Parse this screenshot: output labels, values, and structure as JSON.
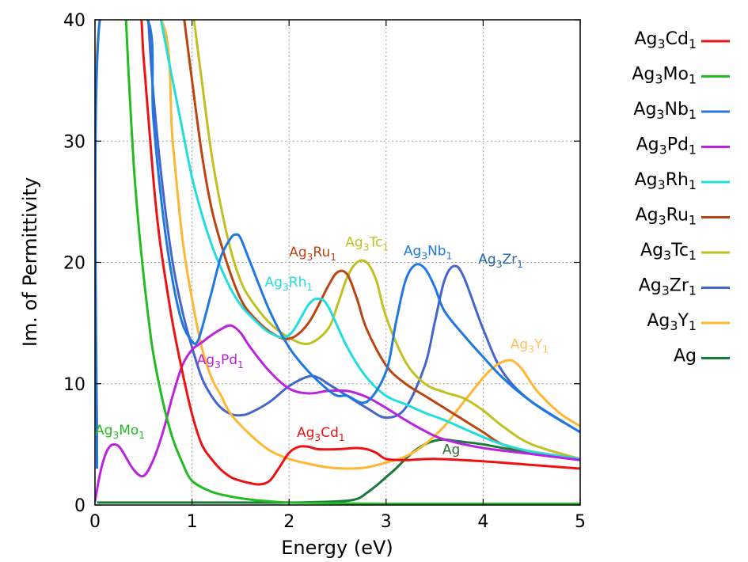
{
  "chart_data": {
    "type": "line",
    "xlabel": "Energy (eV)",
    "ylabel": "Im. of Permittivity",
    "xlim": [
      0,
      5
    ],
    "ylim": [
      0,
      40
    ],
    "xticks": [
      "0",
      "1",
      "2",
      "3",
      "4",
      "5"
    ],
    "yticks": [
      "0",
      "10",
      "20",
      "30",
      "40"
    ],
    "grid": true,
    "legend_position": "right",
    "series": [
      {
        "name": "Ag",
        "sub": "",
        "name2": "",
        "sub2": "",
        "label": "Ag",
        "color": "#1a7a3a",
        "x": [
          0.02,
          0.5,
          1.0,
          1.5,
          2.0,
          2.5,
          2.7,
          2.8,
          2.9,
          3.0,
          3.1,
          3.2,
          3.3,
          3.4,
          3.5,
          3.6,
          3.7,
          3.8,
          4.0,
          4.2,
          4.5,
          5.0
        ],
        "y": [
          0.2,
          0.2,
          0.2,
          0.2,
          0.2,
          0.3,
          0.5,
          1.0,
          1.6,
          2.3,
          3.0,
          3.8,
          4.5,
          5.0,
          5.3,
          5.4,
          5.3,
          5.2,
          5.0,
          4.7,
          4.3,
          3.7
        ]
      },
      {
        "name": "Ag",
        "sub": "3",
        "name2": "Zr",
        "sub2": "1",
        "label": "Ag3Zr1",
        "color": "#4466cc",
        "x": [
          0.55,
          0.6,
          0.7,
          0.8,
          0.9,
          1.0,
          1.1,
          1.2,
          1.3,
          1.4,
          1.5,
          1.6,
          1.8,
          2.0,
          2.2,
          2.3,
          2.4,
          2.6,
          2.8,
          3.0,
          3.2,
          3.4,
          3.5,
          3.6,
          3.7,
          3.8,
          4.0,
          4.2,
          4.5,
          5.0
        ],
        "y": [
          40,
          34,
          26,
          20,
          16,
          13,
          10.5,
          9,
          8,
          7.5,
          7.4,
          7.6,
          8.5,
          9.8,
          10.6,
          10.5,
          10,
          9,
          8,
          7.2,
          8,
          11.5,
          15,
          18.5,
          19.7,
          18.8,
          14.5,
          11,
          8.5,
          6
        ]
      },
      {
        "name": "Ag",
        "sub": "3",
        "name2": "Y",
        "sub2": "1",
        "label": "Ag3Y1",
        "color": "#ffb733",
        "x": [
          0.02,
          0.05,
          0.68,
          0.8,
          0.9,
          1.0,
          1.1,
          1.2,
          1.3,
          1.4,
          1.6,
          1.8,
          2.0,
          2.2,
          2.4,
          2.6,
          2.8,
          3.0,
          3.2,
          3.4,
          3.6,
          3.8,
          4.0,
          4.1,
          4.2,
          4.3,
          4.4,
          4.5,
          4.6,
          4.8,
          5.0
        ],
        "y": [
          5,
          40,
          40,
          30,
          22,
          17,
          13,
          10.5,
          9,
          7.5,
          5.8,
          4.5,
          3.8,
          3.4,
          3.1,
          3.0,
          3.1,
          3.5,
          4,
          5,
          6.5,
          8.5,
          10.5,
          11.3,
          11.8,
          11.9,
          11.2,
          10,
          9,
          7.5,
          6.5
        ]
      },
      {
        "name": "Ag",
        "sub": "3",
        "name2": "Tc",
        "sub2": "1",
        "label": "Ag3Tc1",
        "color": "#c0c020",
        "x": [
          1.02,
          1.1,
          1.2,
          1.3,
          1.4,
          1.5,
          1.6,
          1.8,
          2.0,
          2.2,
          2.4,
          2.5,
          2.6,
          2.7,
          2.8,
          2.9,
          3.0,
          3.2,
          3.4,
          3.6,
          3.8,
          4.0,
          4.2,
          4.5,
          5.0
        ],
        "y": [
          40,
          35,
          29,
          24.5,
          21,
          18.5,
          17,
          15,
          13.8,
          13.3,
          14.5,
          16.5,
          18.8,
          20,
          20,
          18.5,
          15.5,
          11.8,
          10,
          9.3,
          8.8,
          7.8,
          6.5,
          5,
          3.8
        ]
      },
      {
        "name": "Ag",
        "sub": "3",
        "name2": "Ru",
        "sub2": "1",
        "label": "Ag3Ru1",
        "color": "#bb4411",
        "x": [
          0.92,
          1.0,
          1.1,
          1.2,
          1.3,
          1.4,
          1.5,
          1.6,
          1.8,
          2.0,
          2.2,
          2.4,
          2.5,
          2.6,
          2.7,
          2.8,
          3.0,
          3.2,
          3.4,
          3.6,
          3.8,
          4.0,
          4.2,
          4.5,
          5.0
        ],
        "y": [
          40,
          35,
          29,
          24.5,
          21.5,
          19,
          17,
          15.8,
          14.3,
          13.7,
          15,
          18,
          19.2,
          19,
          17,
          14.5,
          11.5,
          10,
          9,
          8,
          7,
          6,
          5,
          4.4,
          3.8
        ]
      },
      {
        "name": "Ag",
        "sub": "3",
        "name2": "Rh",
        "sub2": "1",
        "label": "Ag3Rh1",
        "color": "#22dddd",
        "x": [
          0.68,
          0.8,
          0.9,
          1.0,
          1.1,
          1.2,
          1.3,
          1.4,
          1.5,
          1.6,
          1.8,
          2.0,
          2.2,
          2.3,
          2.4,
          2.6,
          2.8,
          3.0,
          3.2,
          3.4,
          3.6,
          3.8,
          4.0,
          4.2,
          4.5,
          5.0
        ],
        "y": [
          40,
          35,
          31,
          27,
          24,
          21.5,
          19.5,
          17.8,
          16.5,
          15.6,
          14.2,
          14,
          16.5,
          17,
          16.4,
          13,
          10.5,
          9,
          8.3,
          7.6,
          7,
          6.3,
          5.6,
          5,
          4.4,
          3.8
        ]
      },
      {
        "name": "Ag",
        "sub": "3",
        "name2": "Pd",
        "sub2": "1",
        "label": "Ag3Pd1",
        "color": "#bb22dd",
        "x": [
          0.0,
          0.05,
          0.1,
          0.15,
          0.2,
          0.25,
          0.3,
          0.4,
          0.5,
          0.6,
          0.7,
          0.8,
          0.9,
          1.0,
          1.1,
          1.2,
          1.3,
          1.4,
          1.5,
          1.6,
          1.8,
          2.0,
          2.2,
          2.4,
          2.6,
          2.8,
          3.0,
          3.2,
          3.4,
          3.6,
          4.0,
          4.5,
          5.0
        ],
        "y": [
          0.3,
          2.5,
          4,
          4.8,
          5,
          4.8,
          4.2,
          2.9,
          2.4,
          3.7,
          6,
          9,
          11.5,
          12.8,
          13.4,
          14,
          14.5,
          14.8,
          14.2,
          13,
          11,
          9.6,
          9.2,
          9.4,
          9.4,
          8.9,
          8,
          7,
          6.1,
          5.4,
          4.7,
          4.2,
          3.7
        ]
      },
      {
        "name": "Ag",
        "sub": "3",
        "name2": "Nb",
        "sub2": "1",
        "label": "Ag3Nb1",
        "color": "#1f77e0",
        "x": [
          0.02,
          0.05,
          0.54,
          0.6,
          0.7,
          0.8,
          0.9,
          1.0,
          1.05,
          1.1,
          1.2,
          1.3,
          1.4,
          1.45,
          1.5,
          1.6,
          1.8,
          2.0,
          2.2,
          2.4,
          2.5,
          2.6,
          2.8,
          3.0,
          3.1,
          3.2,
          3.3,
          3.4,
          3.5,
          3.6,
          3.8,
          4.0,
          4.2,
          4.5,
          5.0
        ],
        "y": [
          3,
          40,
          40,
          32,
          24,
          18.5,
          15,
          13.5,
          13.4,
          14.5,
          17.5,
          20.5,
          22,
          22.3,
          22,
          20,
          16,
          13,
          11,
          9.5,
          9,
          9,
          8.5,
          11,
          15,
          18.5,
          19.8,
          19.5,
          18,
          16,
          14,
          12.2,
          10.5,
          8.5,
          6
        ]
      },
      {
        "name": "Ag",
        "sub": "3",
        "name2": "Mo",
        "sub2": "1",
        "label": "Ag3Mo1",
        "color": "#22bb22",
        "x": [
          0.32,
          0.35,
          0.4,
          0.45,
          0.5,
          0.55,
          0.6,
          0.7,
          0.8,
          0.9,
          1.0,
          1.2,
          1.4,
          1.6,
          1.8,
          2.0,
          2.5,
          3.0,
          4.0,
          5.0
        ],
        "y": [
          40,
          35,
          28,
          23,
          19,
          15.5,
          12.5,
          8.5,
          5.5,
          3.5,
          2,
          1.1,
          0.7,
          0.45,
          0.3,
          0.2,
          0.15,
          0.1,
          0.1,
          0.1
        ]
      },
      {
        "name": "Ag",
        "sub": "3",
        "name2": "Cd",
        "sub2": "1",
        "label": "Ag3Cd1",
        "color": "#ee1111",
        "x": [
          0.48,
          0.5,
          0.55,
          0.6,
          0.65,
          0.7,
          0.8,
          0.9,
          1.0,
          1.1,
          1.2,
          1.3,
          1.4,
          1.5,
          1.6,
          1.7,
          1.8,
          1.9,
          2.0,
          2.1,
          2.2,
          2.3,
          2.5,
          2.7,
          2.8,
          2.9,
          3.0,
          3.2,
          3.5,
          4.0,
          4.5,
          5.0
        ],
        "y": [
          40,
          37,
          32,
          27,
          23,
          20,
          15,
          11,
          7.5,
          5,
          3.8,
          2.9,
          2.3,
          2,
          1.8,
          1.7,
          2,
          3.1,
          4.3,
          4.8,
          4.8,
          4.6,
          4.6,
          4.7,
          4.6,
          4.3,
          3.8,
          3.7,
          3.8,
          3.6,
          3.3,
          3.0
        ]
      }
    ],
    "legend": [
      {
        "main": "Ag",
        "sub": "3",
        "main2": "Cd",
        "sub2": "1",
        "color": "#ee1111"
      },
      {
        "main": "Ag",
        "sub": "3",
        "main2": "Mo",
        "sub2": "1",
        "color": "#22bb22"
      },
      {
        "main": "Ag",
        "sub": "3",
        "main2": "Nb",
        "sub2": "1",
        "color": "#1f77e0"
      },
      {
        "main": "Ag",
        "sub": "3",
        "main2": "Pd",
        "sub2": "1",
        "color": "#bb22dd"
      },
      {
        "main": "Ag",
        "sub": "3",
        "main2": "Rh",
        "sub2": "1",
        "color": "#22dddd"
      },
      {
        "main": "Ag",
        "sub": "3",
        "main2": "Ru",
        "sub2": "1",
        "color": "#bb4411"
      },
      {
        "main": "Ag",
        "sub": "3",
        "main2": "Tc",
        "sub2": "1",
        "color": "#c0c020"
      },
      {
        "main": "Ag",
        "sub": "3",
        "main2": "Zr",
        "sub2": "1",
        "color": "#4466cc"
      },
      {
        "main": "Ag",
        "sub": "3",
        "main2": "Y",
        "sub2": "1",
        "color": "#ffb733"
      },
      {
        "main": "Ag",
        "sub": "",
        "main2": "",
        "sub2": "",
        "color": "#1a7a3a"
      }
    ],
    "annotations": [
      {
        "main": "Ag",
        "sub": "3",
        "main2": "Mo",
        "sub2": "1",
        "x": 0.0,
        "y": 5.8,
        "color": "#22bb22"
      },
      {
        "main": "Ag",
        "sub": "3",
        "main2": "Pd",
        "sub2": "1",
        "x": 1.05,
        "y": 11.6,
        "color": "#bb22dd"
      },
      {
        "main": "Ag",
        "sub": "3",
        "main2": "Rh",
        "sub2": "1",
        "x": 1.75,
        "y": 18.0,
        "color": "#22dddd"
      },
      {
        "main": "Ag",
        "sub": "3",
        "main2": "Ru",
        "sub2": "1",
        "x": 2.0,
        "y": 20.5,
        "color": "#bb4411"
      },
      {
        "main": "Ag",
        "sub": "3",
        "main2": "Tc",
        "sub2": "1",
        "x": 2.58,
        "y": 21.3,
        "color": "#c0c020"
      },
      {
        "main": "Ag",
        "sub": "3",
        "main2": "Nb",
        "sub2": "1",
        "x": 3.18,
        "y": 20.6,
        "color": "#1f77e0"
      },
      {
        "main": "Ag",
        "sub": "3",
        "main2": "Zr",
        "sub2": "1",
        "x": 3.95,
        "y": 19.9,
        "color": "#2266aa"
      },
      {
        "main": "Ag",
        "sub": "3",
        "main2": "Cd",
        "sub2": "1",
        "x": 2.08,
        "y": 5.6,
        "color": "#ee1111"
      },
      {
        "main": "Ag",
        "sub": "",
        "main2": "",
        "sub2": "",
        "x": 3.58,
        "y": 4.2,
        "color": "#2e6b2e"
      },
      {
        "main": "Ag",
        "sub": "3",
        "main2": "Y",
        "sub2": "1",
        "x": 4.28,
        "y": 12.9,
        "color": "#ffc060"
      }
    ]
  }
}
